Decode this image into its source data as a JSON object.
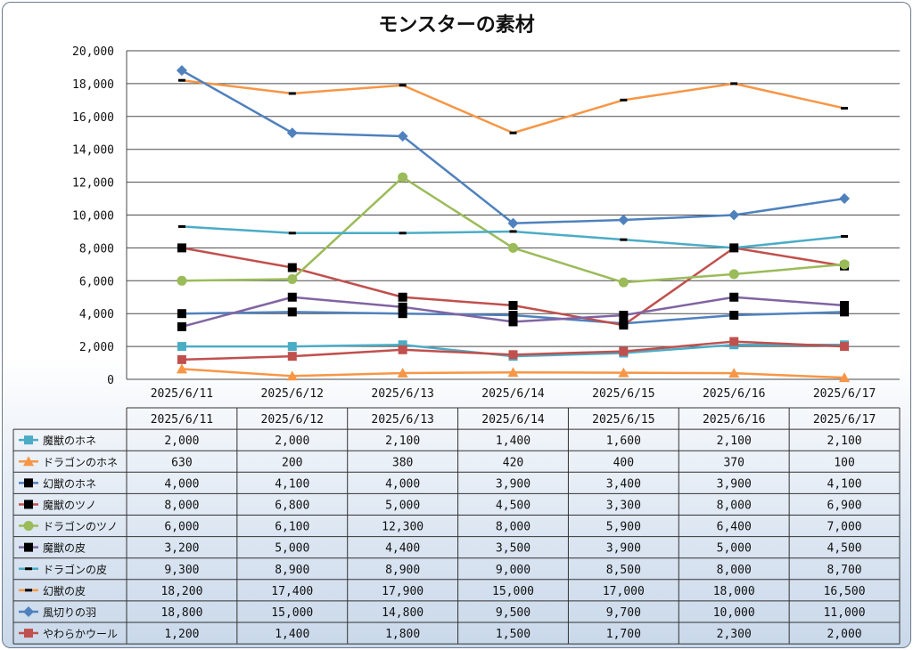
{
  "chart_data": {
    "type": "line",
    "title": "モンスターの素材",
    "categories": [
      "2025/6/11",
      "2025/6/12",
      "2025/6/13",
      "2025/6/14",
      "2025/6/15",
      "2025/6/16",
      "2025/6/17"
    ],
    "ylim": [
      0,
      20000
    ],
    "yticks": [
      "0",
      "2,000",
      "4,000",
      "6,000",
      "8,000",
      "10,000",
      "12,000",
      "14,000",
      "16,000",
      "18,000",
      "20,000"
    ],
    "grid": true,
    "legend": "data-table-below",
    "series": [
      {
        "name": "魔獣のホネ",
        "color": "#4bacc6",
        "marker": "square",
        "values": [
          2000,
          2000,
          2100,
          1400,
          1600,
          2100,
          2100
        ],
        "labels": [
          "2,000",
          "2,000",
          "2,100",
          "1,400",
          "1,600",
          "2,100",
          "2,100"
        ]
      },
      {
        "name": "ドラゴンのホネ",
        "color": "#f79646",
        "marker": "triangle",
        "values": [
          630,
          200,
          380,
          420,
          400,
          370,
          100
        ],
        "labels": [
          "630",
          "200",
          "380",
          "420",
          "400",
          "370",
          "100"
        ]
      },
      {
        "name": "幻獣のホネ",
        "color": "#4f81bd",
        "marker": "black-square",
        "values": [
          4000,
          4100,
          4000,
          3900,
          3400,
          3900,
          4100
        ],
        "labels": [
          "4,000",
          "4,100",
          "4,000",
          "3,900",
          "3,400",
          "3,900",
          "4,100"
        ]
      },
      {
        "name": "魔獣のツノ",
        "color": "#c0504d",
        "marker": "black-square",
        "values": [
          8000,
          6800,
          5000,
          4500,
          3300,
          8000,
          6900
        ],
        "labels": [
          "8,000",
          "6,800",
          "5,000",
          "4,500",
          "3,300",
          "8,000",
          "6,900"
        ]
      },
      {
        "name": "ドラゴンのツノ",
        "color": "#9bbb59",
        "marker": "circle",
        "values": [
          6000,
          6100,
          12300,
          8000,
          5900,
          6400,
          7000
        ],
        "labels": [
          "6,000",
          "6,100",
          "12,300",
          "8,000",
          "5,900",
          "6,400",
          "7,000"
        ]
      },
      {
        "name": "魔獣の皮",
        "color": "#8064a2",
        "marker": "black-square",
        "values": [
          3200,
          5000,
          4400,
          3500,
          3900,
          5000,
          4500
        ],
        "labels": [
          "3,200",
          "5,000",
          "4,400",
          "3,500",
          "3,900",
          "5,000",
          "4,500"
        ]
      },
      {
        "name": "ドラゴンの皮",
        "color": "#4bacc6",
        "marker": "dash",
        "values": [
          9300,
          8900,
          8900,
          9000,
          8500,
          8000,
          8700
        ],
        "labels": [
          "9,300",
          "8,900",
          "8,900",
          "9,000",
          "8,500",
          "8,000",
          "8,700"
        ]
      },
      {
        "name": "幻獣の皮",
        "color": "#f79646",
        "marker": "dash",
        "values": [
          18200,
          17400,
          17900,
          15000,
          17000,
          18000,
          16500
        ],
        "labels": [
          "18,200",
          "17,400",
          "17,900",
          "15,000",
          "17,000",
          "18,000",
          "16,500"
        ]
      },
      {
        "name": "風切りの羽",
        "color": "#4f81bd",
        "marker": "diamond",
        "values": [
          18800,
          15000,
          14800,
          9500,
          9700,
          10000,
          11000
        ],
        "labels": [
          "18,800",
          "15,000",
          "14,800",
          "9,500",
          "9,700",
          "10,000",
          "11,000"
        ]
      },
      {
        "name": "やわらかウール",
        "color": "#c0504d",
        "marker": "square",
        "values": [
          1200,
          1400,
          1800,
          1500,
          1700,
          2300,
          2000
        ],
        "labels": [
          "1,200",
          "1,400",
          "1,800",
          "1,500",
          "1,700",
          "2,300",
          "2,000"
        ]
      }
    ]
  }
}
